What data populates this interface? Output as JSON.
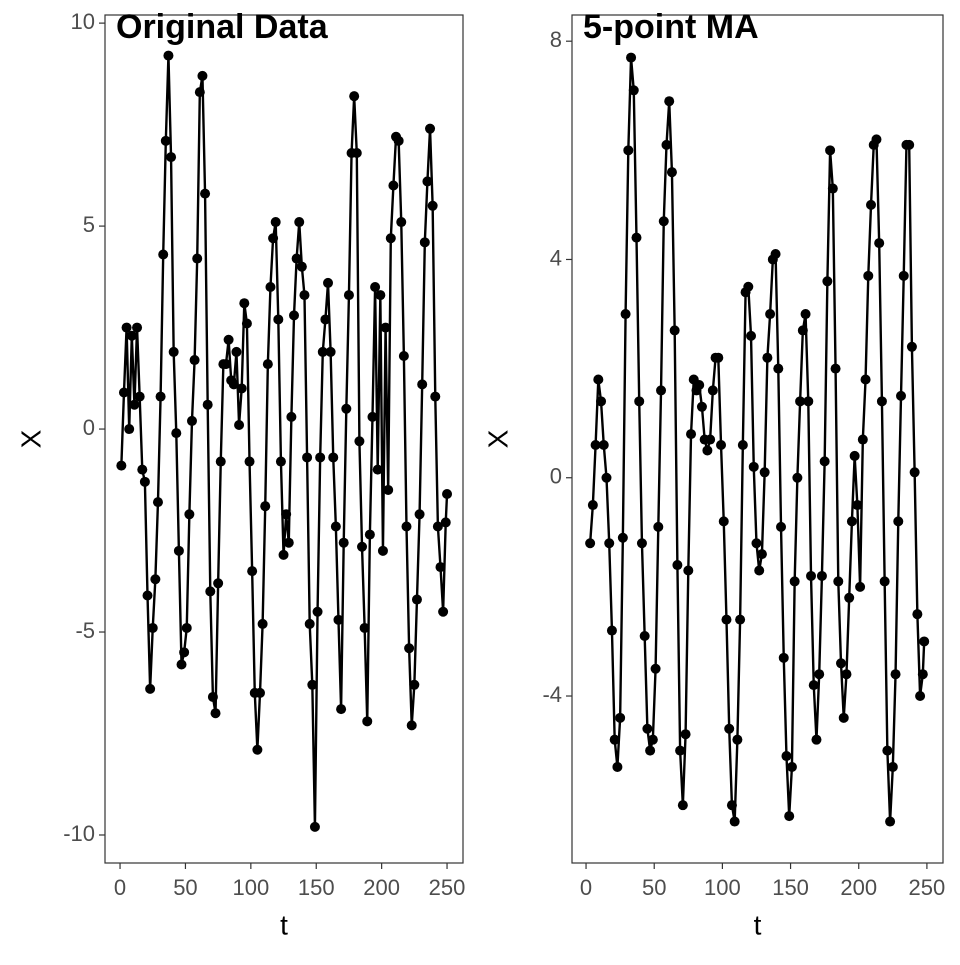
{
  "chart_data": [
    {
      "type": "line",
      "title": "Original Data",
      "x_label": "t",
      "y_label": "X",
      "color": "#000000",
      "markers": true,
      "x": [
        1,
        3,
        5,
        7,
        9,
        11,
        13,
        15,
        17,
        19,
        21,
        23,
        25,
        27,
        29,
        31,
        33,
        35,
        37,
        39,
        41,
        43,
        45,
        47,
        49,
        51,
        53,
        55,
        57,
        59,
        61,
        63,
        65,
        67,
        69,
        71,
        73,
        75,
        77,
        79,
        81,
        83,
        85,
        87,
        89,
        91,
        93,
        95,
        97,
        99,
        101,
        103,
        105,
        107,
        109,
        111,
        113,
        115,
        117,
        119,
        121,
        123,
        125,
        127,
        129,
        131,
        133,
        135,
        137,
        139,
        141,
        143,
        145,
        147,
        149,
        151,
        153,
        155,
        157,
        159,
        161,
        163,
        165,
        167,
        169,
        171,
        173,
        175,
        177,
        179,
        181,
        183,
        185,
        187,
        189,
        191,
        193,
        195,
        197,
        199,
        201,
        203,
        205,
        207,
        209,
        211,
        213,
        215,
        217,
        219,
        221,
        223,
        225,
        227,
        229,
        231,
        233,
        235,
        237,
        239,
        241,
        243,
        245,
        247,
        249,
        250
      ],
      "values": [
        -0.9,
        0.9,
        2.5,
        0.0,
        2.3,
        0.6,
        2.5,
        0.8,
        -1.0,
        -1.3,
        -4.1,
        -6.4,
        -4.9,
        -3.7,
        -1.8,
        0.8,
        4.3,
        7.1,
        9.2,
        6.7,
        1.9,
        -0.1,
        -3.0,
        -5.8,
        -5.5,
        -4.9,
        -2.1,
        0.2,
        1.7,
        4.2,
        8.3,
        8.7,
        5.8,
        0.6,
        -4.0,
        -6.6,
        -7.0,
        -3.8,
        -0.8,
        1.6,
        1.6,
        2.2,
        1.2,
        1.1,
        1.9,
        0.1,
        1.0,
        3.1,
        2.6,
        -0.8,
        -3.5,
        -6.5,
        -7.9,
        -6.5,
        -4.8,
        -1.9,
        1.6,
        3.5,
        4.7,
        5.1,
        2.7,
        -0.8,
        -3.1,
        -2.1,
        -2.8,
        0.3,
        2.8,
        4.2,
        5.1,
        4.0,
        3.3,
        -0.7,
        -4.8,
        -6.3,
        -9.8,
        -4.5,
        -0.7,
        1.9,
        2.7,
        3.6,
        1.9,
        -0.7,
        -2.4,
        -4.7,
        -6.9,
        -2.8,
        0.5,
        3.3,
        6.8,
        8.2,
        6.8,
        -0.3,
        -2.9,
        -4.9,
        -7.2,
        -2.6,
        0.3,
        3.5,
        -1.0,
        3.3,
        -3.0,
        2.5,
        -1.5,
        4.7,
        6.0,
        7.2,
        7.1,
        5.1,
        1.8,
        -2.4,
        -5.4,
        -7.3,
        -6.3,
        -4.2,
        -2.1,
        1.1,
        4.6,
        6.1,
        7.4,
        5.5,
        0.8,
        -2.4,
        -3.4,
        -4.5,
        -2.3,
        -1.6
      ],
      "xlim": [
        -11.5,
        262.2
      ],
      "ylim": [
        -10.69,
        10.2
      ],
      "xticks": [
        0,
        50,
        100,
        150,
        200,
        250
      ],
      "yticks": [
        -10,
        -5,
        0,
        5,
        10
      ]
    },
    {
      "type": "line",
      "title": "5-point MA",
      "x_label": "t",
      "y_label": "X",
      "color": "#000000",
      "markers": true,
      "x": [
        3,
        5,
        7,
        9,
        11,
        13,
        15,
        17,
        19,
        21,
        23,
        25,
        27,
        29,
        31,
        33,
        35,
        37,
        39,
        41,
        43,
        45,
        47,
        49,
        51,
        53,
        55,
        57,
        59,
        61,
        63,
        65,
        67,
        69,
        71,
        73,
        75,
        77,
        79,
        81,
        83,
        85,
        87,
        89,
        91,
        93,
        95,
        97,
        99,
        101,
        103,
        105,
        107,
        109,
        111,
        113,
        115,
        117,
        119,
        121,
        123,
        125,
        127,
        129,
        131,
        133,
        135,
        137,
        139,
        141,
        143,
        145,
        147,
        149,
        151,
        153,
        155,
        157,
        159,
        161,
        163,
        165,
        167,
        169,
        171,
        173,
        175,
        177,
        179,
        181,
        183,
        185,
        187,
        189,
        191,
        193,
        195,
        197,
        199,
        201,
        203,
        205,
        207,
        209,
        211,
        213,
        215,
        217,
        219,
        221,
        223,
        225,
        227,
        229,
        231,
        233,
        235,
        237,
        239,
        241,
        243,
        245,
        247,
        248
      ],
      "values": [
        -1.2,
        -0.5,
        0.6,
        1.8,
        1.4,
        0.6,
        0.0,
        -1.2,
        -2.8,
        -4.8,
        -5.3,
        -4.4,
        -1.1,
        3.0,
        6.0,
        7.7,
        7.1,
        4.4,
        1.4,
        -1.2,
        -2.9,
        -4.6,
        -5.0,
        -4.8,
        -3.5,
        -0.9,
        1.6,
        4.7,
        6.1,
        6.9,
        5.6,
        2.7,
        -1.6,
        -5.0,
        -6.0,
        -4.7,
        -1.7,
        0.8,
        1.8,
        1.6,
        1.7,
        1.3,
        0.7,
        0.5,
        0.7,
        1.6,
        2.2,
        2.2,
        0.6,
        -0.8,
        -2.6,
        -4.6,
        -6.0,
        -6.3,
        -4.8,
        -2.6,
        0.6,
        3.4,
        3.5,
        2.6,
        0.2,
        -1.2,
        -1.7,
        -1.4,
        0.1,
        2.2,
        3.0,
        4.0,
        4.1,
        2.0,
        -0.9,
        -3.3,
        -5.1,
        -6.2,
        -5.3,
        -1.9,
        0.0,
        1.4,
        2.7,
        3.0,
        1.4,
        -1.8,
        -3.8,
        -4.8,
        -3.6,
        -1.8,
        0.3,
        3.6,
        6.0,
        5.3,
        2.0,
        -1.9,
        -3.4,
        -4.4,
        -3.6,
        -2.2,
        -0.8,
        0.4,
        -0.5,
        -2.0,
        0.7,
        1.8,
        3.7,
        5.0,
        6.1,
        6.2,
        4.3,
        1.4,
        -1.9,
        -5.0,
        -6.3,
        -5.3,
        -3.6,
        -0.8,
        1.5,
        3.7,
        6.1,
        6.1,
        2.4,
        0.1,
        -2.5,
        -4.0,
        -3.6,
        -3.0
      ],
      "xlim": [
        -10.3,
        261.8
      ],
      "ylim": [
        -7.06,
        8.48
      ],
      "xticks": [
        0,
        50,
        100,
        150,
        200,
        250
      ],
      "yticks": [
        -4,
        0,
        4,
        8
      ]
    }
  ]
}
